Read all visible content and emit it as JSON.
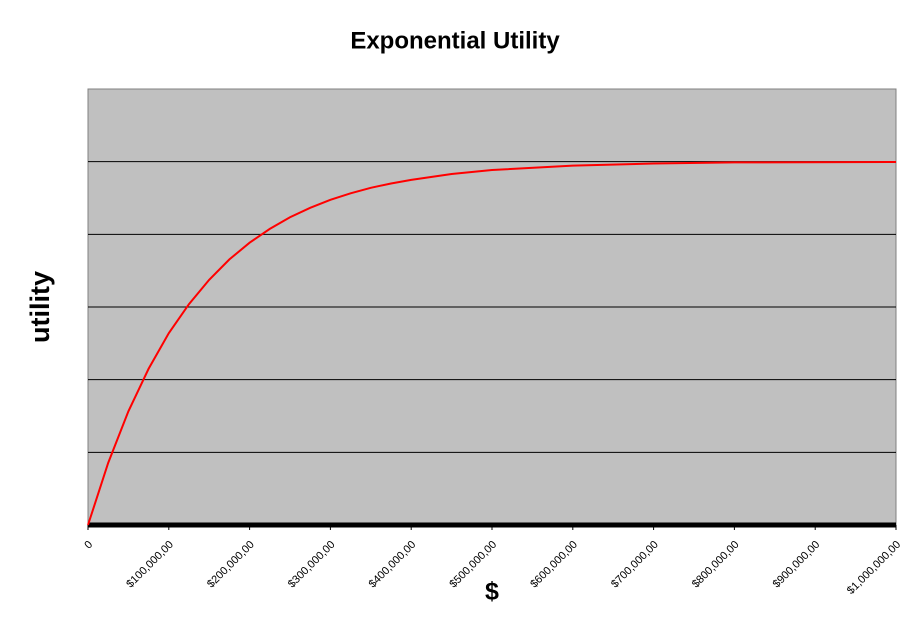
{
  "chart_data": {
    "type": "line",
    "title": "Exponential Utility",
    "x_label": "$",
    "y_label": "utility",
    "x": [
      0,
      25000,
      50000,
      75000,
      100000,
      125000,
      150000,
      175000,
      200000,
      225000,
      250000,
      275000,
      300000,
      325000,
      350000,
      375000,
      400000,
      450000,
      500000,
      600000,
      700000,
      800000,
      1000000
    ],
    "series": [
      {
        "name": "utility",
        "color": "#ff0000",
        "values": [
          0,
          0.171,
          0.313,
          0.43,
          0.528,
          0.608,
          0.675,
          0.731,
          0.777,
          0.815,
          0.847,
          0.873,
          0.895,
          0.913,
          0.928,
          0.94,
          0.95,
          0.966,
          0.977,
          0.989,
          0.995,
          0.998,
          0.999
        ]
      }
    ],
    "xlim": [
      0,
      1000000
    ],
    "xticks": [
      0,
      {
        "value": 100000,
        "label": "$100,000,00"
      },
      {
        "value": 200000,
        "label": "$200,000,00"
      },
      {
        "value": 300000,
        "label": "$300,000,00"
      },
      {
        "value": 400000,
        "label": "$400,000,00"
      },
      {
        "value": 500000,
        "label": "$500,000,00"
      },
      {
        "value": 600000,
        "label": "$600,000,00"
      },
      {
        "value": 700000,
        "label": "$700,000,00"
      },
      {
        "value": 800000,
        "label": "$800,000,00"
      },
      {
        "value": 900000,
        "label": "$900,000,00"
      },
      {
        "value": 1000000,
        "label": "$1,000,000,00"
      }
    ],
    "ylim": [
      0,
      1.2
    ],
    "yticks": [
      0.2,
      0.4,
      0.6,
      0.8,
      1.0
    ],
    "ytick_labels": false,
    "grid": true,
    "plot_background": "#c0c0c0"
  }
}
